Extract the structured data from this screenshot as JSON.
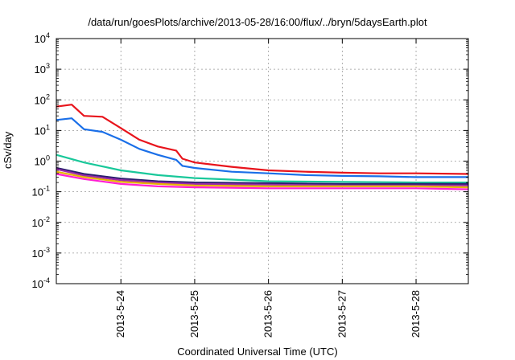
{
  "chart_data": {
    "type": "line",
    "title": "/data/run/goesPlots/archive/2013-05-28/16:00/flux/../bryn/5daysEarth.plot",
    "xlabel": "Coordinated Universal Time (UTC)",
    "ylabel": "cSv/day",
    "yscale": "log",
    "ylim": [
      0.0001,
      10000
    ],
    "yticks": [
      {
        "value": 0.0001,
        "base": "10",
        "exp": "-4"
      },
      {
        "value": 0.001,
        "base": "10",
        "exp": "-3"
      },
      {
        "value": 0.01,
        "base": "10",
        "exp": "-2"
      },
      {
        "value": 0.1,
        "base": "10",
        "exp": "-1"
      },
      {
        "value": 1,
        "base": "10",
        "exp": "0"
      },
      {
        "value": 10,
        "base": "10",
        "exp": "1"
      },
      {
        "value": 100,
        "base": "10",
        "exp": "2"
      },
      {
        "value": 1000,
        "base": "10",
        "exp": "3"
      },
      {
        "value": 10000,
        "base": "10",
        "exp": "4"
      }
    ],
    "xlim": [
      "2013-05-23T03:00",
      "2013-05-28T17:00"
    ],
    "xticks": [
      "2013-5-24",
      "2013-5-25",
      "2013-5-26",
      "2013-5-27",
      "2013-5-28"
    ],
    "grid": true,
    "series": [
      {
        "color": "#e8141c",
        "x": [
          "2013-05-23T03:00",
          "2013-05-23T08:00",
          "2013-05-23T12:00",
          "2013-05-23T18:00",
          "2013-05-24T00:00",
          "2013-05-24T06:00",
          "2013-05-24T12:00",
          "2013-05-24T18:00",
          "2013-05-24T20:00",
          "2013-05-25T00:00",
          "2013-05-25T12:00",
          "2013-05-26T00:00",
          "2013-05-26T12:00",
          "2013-05-27T00:00",
          "2013-05-27T12:00",
          "2013-05-28T00:00",
          "2013-05-28T17:00"
        ],
        "y": [
          60,
          70,
          30,
          28,
          12,
          5,
          3,
          2.2,
          1.2,
          0.9,
          0.65,
          0.5,
          0.45,
          0.42,
          0.4,
          0.4,
          0.38
        ]
      },
      {
        "color": "#1a6fe8",
        "x": [
          "2013-05-23T03:00",
          "2013-05-23T08:00",
          "2013-05-23T12:00",
          "2013-05-23T18:00",
          "2013-05-24T00:00",
          "2013-05-24T06:00",
          "2013-05-24T12:00",
          "2013-05-24T18:00",
          "2013-05-24T20:00",
          "2013-05-25T00:00",
          "2013-05-25T12:00",
          "2013-05-26T00:00",
          "2013-05-26T12:00",
          "2013-05-27T00:00",
          "2013-05-27T12:00",
          "2013-05-28T00:00",
          "2013-05-28T17:00"
        ],
        "y": [
          22,
          25,
          11,
          9,
          5,
          2.5,
          1.6,
          1.1,
          0.7,
          0.6,
          0.45,
          0.4,
          0.35,
          0.33,
          0.32,
          0.3,
          0.3
        ]
      },
      {
        "color": "#19c89a",
        "x": [
          "2013-05-23T03:00",
          "2013-05-23T12:00",
          "2013-05-24T00:00",
          "2013-05-24T12:00",
          "2013-05-25T00:00",
          "2013-05-25T12:00",
          "2013-05-26T00:00",
          "2013-05-27T00:00",
          "2013-05-28T00:00",
          "2013-05-28T17:00"
        ],
        "y": [
          1.6,
          0.9,
          0.5,
          0.35,
          0.28,
          0.25,
          0.22,
          0.21,
          0.2,
          0.2
        ]
      },
      {
        "color": "#2a1e6e",
        "x": [
          "2013-05-23T03:00",
          "2013-05-23T12:00",
          "2013-05-24T00:00",
          "2013-05-24T12:00",
          "2013-05-25T00:00",
          "2013-05-26T00:00",
          "2013-05-27T00:00",
          "2013-05-28T00:00",
          "2013-05-28T17:00"
        ],
        "y": [
          0.6,
          0.38,
          0.27,
          0.22,
          0.2,
          0.19,
          0.18,
          0.18,
          0.18
        ]
      },
      {
        "color": "#9a2aa8",
        "x": [
          "2013-05-23T03:00",
          "2013-05-23T12:00",
          "2013-05-24T00:00",
          "2013-05-24T12:00",
          "2013-05-25T00:00",
          "2013-05-26T00:00",
          "2013-05-27T00:00",
          "2013-05-28T00:00",
          "2013-05-28T17:00"
        ],
        "y": [
          0.55,
          0.34,
          0.24,
          0.2,
          0.18,
          0.17,
          0.16,
          0.16,
          0.16
        ]
      },
      {
        "color": "#e6b400",
        "x": [
          "2013-05-23T03:00",
          "2013-05-23T12:00",
          "2013-05-24T00:00",
          "2013-05-24T12:00",
          "2013-05-25T00:00",
          "2013-05-26T00:00",
          "2013-05-27T00:00",
          "2013-05-28T00:00",
          "2013-05-28T17:00"
        ],
        "y": [
          0.45,
          0.3,
          0.21,
          0.18,
          0.16,
          0.15,
          0.15,
          0.15,
          0.14
        ]
      },
      {
        "color": "#ff1fd2",
        "x": [
          "2013-05-23T03:00",
          "2013-05-23T12:00",
          "2013-05-24T00:00",
          "2013-05-24T12:00",
          "2013-05-25T00:00",
          "2013-05-26T00:00",
          "2013-05-27T00:00",
          "2013-05-28T00:00",
          "2013-05-28T17:00"
        ],
        "y": [
          0.38,
          0.26,
          0.18,
          0.15,
          0.14,
          0.13,
          0.13,
          0.13,
          0.12
        ]
      }
    ]
  }
}
